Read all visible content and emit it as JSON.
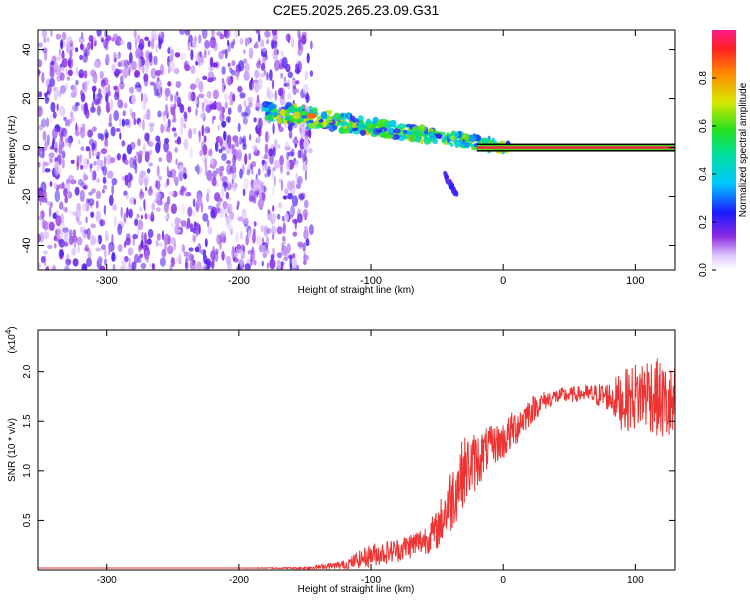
{
  "title": "C2E5.2025.265.23.09.G31",
  "chart_data": [
    {
      "type": "heatmap",
      "panel": "spectrogram",
      "xlabel": "Height of straight line (km)",
      "ylabel": "Frequency (Hz)",
      "xlim": [
        -352,
        130
      ],
      "ylim": [
        -50,
        48
      ],
      "xticks": [
        -300,
        -200,
        -100,
        0,
        100
      ],
      "yticks": [
        -40,
        -20,
        0,
        20,
        40
      ],
      "colorbar": {
        "label": "Normalized spectral amplitude",
        "range": [
          0,
          1
        ],
        "ticks": [
          0.0,
          0.2,
          0.4,
          0.6,
          0.8
        ]
      },
      "features": {
        "noise_region": {
          "x_from": -352,
          "x_to": -145,
          "f_from": -50,
          "f_to": 48,
          "amplitude": [
            0.05,
            0.2
          ]
        },
        "transition_band": {
          "x_from": -180,
          "x_to": 5,
          "f_start": 15,
          "f_end": 0,
          "amplitude": [
            0.2,
            0.75
          ]
        },
        "lower_branch": {
          "x_from": -45,
          "x_to": -35,
          "f_from": -10,
          "f_to": -20
        },
        "steady_line": {
          "x_from": -20,
          "x_to": 130,
          "frequency": 0,
          "amplitude": 1.0
        }
      }
    },
    {
      "type": "line",
      "panel": "snr",
      "xlabel": "Height of straight line (km)",
      "ylabel": "SNR (10 * v/v)",
      "yscale_label": "(x10",
      "yscale_exp": "4",
      "yscale_suffix": ")",
      "xlim": [
        -352,
        130
      ],
      "ylim": [
        0,
        2.42
      ],
      "xticks": [
        -300,
        -200,
        -100,
        0,
        100
      ],
      "yticks": [
        0.5,
        1.0,
        1.5,
        2.0
      ],
      "series": [
        {
          "name": "SNR",
          "color": "#ee3333",
          "x": [
            -352,
            -300,
            -250,
            -200,
            -150,
            -120,
            -100,
            -80,
            -60,
            -50,
            -40,
            -30,
            -20,
            -10,
            0,
            10,
            20,
            30,
            40,
            60,
            80,
            90,
            100,
            110,
            120,
            130
          ],
          "y": [
            0.02,
            0.02,
            0.02,
            0.02,
            0.02,
            0.05,
            0.15,
            0.2,
            0.3,
            0.4,
            0.7,
            1.0,
            1.1,
            1.25,
            1.3,
            1.45,
            1.6,
            1.7,
            1.75,
            1.78,
            1.75,
            1.7,
            1.75,
            1.8,
            1.7,
            1.6
          ],
          "noise": [
            0,
            0,
            0,
            0,
            0.01,
            0.05,
            0.12,
            0.12,
            0.15,
            0.2,
            0.35,
            0.35,
            0.3,
            0.2,
            0.2,
            0.2,
            0.15,
            0.1,
            0.08,
            0.08,
            0.15,
            0.3,
            0.35,
            0.4,
            0.4,
            0.45
          ]
        }
      ]
    }
  ]
}
